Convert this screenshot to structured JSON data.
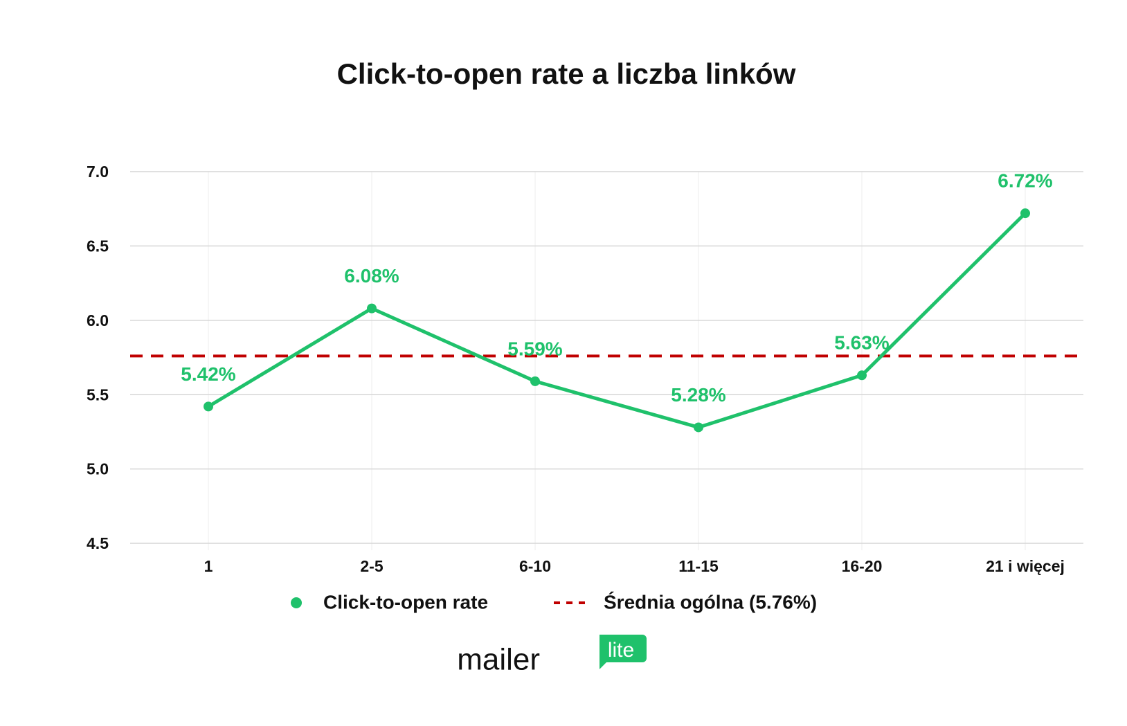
{
  "chart_data": {
    "type": "line",
    "title": "Click-to-open rate a liczba linków",
    "categories": [
      "1",
      "2-5",
      "6-10",
      "11-15",
      "16-20",
      "21 i więcej"
    ],
    "series": [
      {
        "name": "Click-to-open rate",
        "color": "#1fc16b",
        "values": [
          5.42,
          6.08,
          5.59,
          5.28,
          5.63,
          6.72
        ],
        "value_labels": [
          "5.42%",
          "6.08%",
          "5.59%",
          "5.28%",
          "5.63%",
          "6.72%"
        ]
      }
    ],
    "reference_line": {
      "name": "Średnia ogólna (5.76%)",
      "value": 5.76,
      "color": "#c00000"
    },
    "ylim": [
      4.5,
      7
    ],
    "yticks": [
      {
        "value": 4.5,
        "label": "4.5"
      },
      {
        "value": 5,
        "label": "5.0"
      },
      5.5,
      {
        "value": 6,
        "label": "6.0"
      },
      6.5,
      {
        "value": 7,
        "label": "7.0"
      }
    ],
    "grid": true,
    "legend": "bottom"
  },
  "logo": {
    "text": "mailer",
    "badge": "lite"
  }
}
